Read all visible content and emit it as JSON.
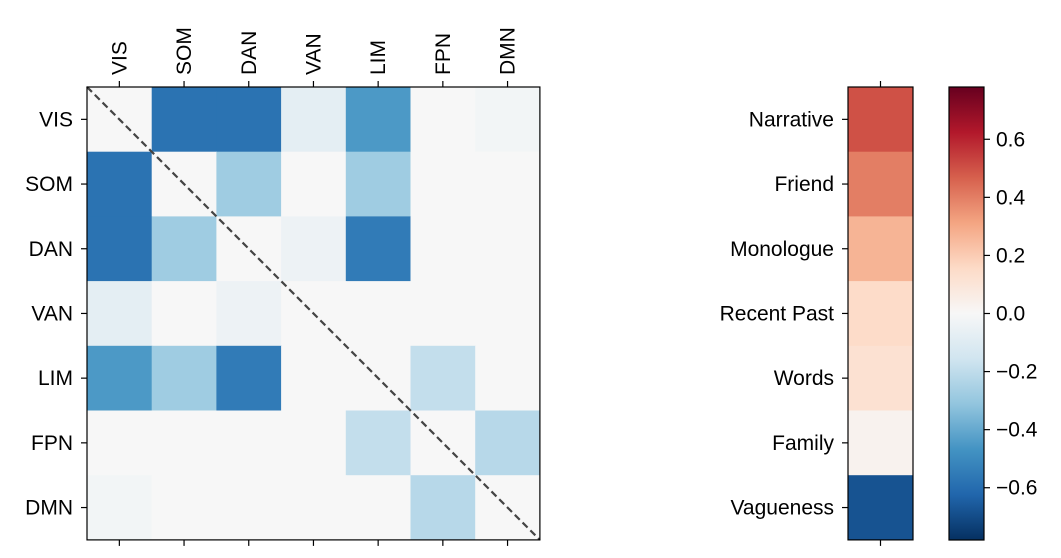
{
  "chart_data": [
    {
      "type": "heatmap",
      "title": "",
      "xlabel": "",
      "ylabel": "",
      "x_tick_labels": [
        "VIS",
        "SOM",
        "DAN",
        "VAN",
        "LIM",
        "FPN",
        "DMN"
      ],
      "y_tick_labels": [
        "VIS",
        "SOM",
        "DAN",
        "VAN",
        "LIM",
        "FPN",
        "DMN"
      ],
      "x_tick_position": "top",
      "diagonal_line": "dashed",
      "values": [
        [
          0.0,
          -0.58,
          -0.58,
          -0.08,
          -0.45,
          0.0,
          -0.02
        ],
        [
          -0.58,
          0.0,
          -0.28,
          0.0,
          -0.28,
          0.0,
          0.0
        ],
        [
          -0.58,
          -0.28,
          0.0,
          -0.04,
          -0.55,
          0.0,
          0.0
        ],
        [
          -0.08,
          0.0,
          -0.04,
          0.0,
          0.0,
          0.0,
          0.0
        ],
        [
          -0.45,
          -0.28,
          -0.55,
          0.0,
          0.0,
          -0.19,
          0.0
        ],
        [
          0.0,
          0.0,
          0.0,
          0.0,
          -0.19,
          0.0,
          -0.22
        ],
        [
          -0.02,
          0.0,
          0.0,
          0.0,
          0.0,
          -0.22,
          0.0
        ]
      ]
    },
    {
      "type": "heatmap",
      "title": "",
      "xlabel": "",
      "ylabel": "",
      "categories": [
        "Narrative",
        "Friend",
        "Monologue",
        "Recent Past",
        "Words",
        "Family",
        "Vagueness"
      ],
      "values": [
        0.5,
        0.4,
        0.27,
        0.15,
        0.12,
        0.03,
        -0.68
      ]
    }
  ],
  "colorbar": {
    "range": [
      -0.78,
      0.78
    ],
    "ticks": [
      0.6,
      0.4,
      0.2,
      0.0,
      -0.2,
      -0.4,
      -0.6
    ],
    "tick_labels": [
      "0.6",
      "0.4",
      "0.2",
      "0.0",
      "−0.2",
      "−0.4",
      "−0.6"
    ],
    "colormap": "RdBu_r",
    "stops": [
      "#053061",
      "#2166ac",
      "#4393c3",
      "#92c5de",
      "#d1e5f0",
      "#f7f7f7",
      "#fddbc7",
      "#f4a582",
      "#d6604d",
      "#b2182b",
      "#67001f"
    ]
  }
}
